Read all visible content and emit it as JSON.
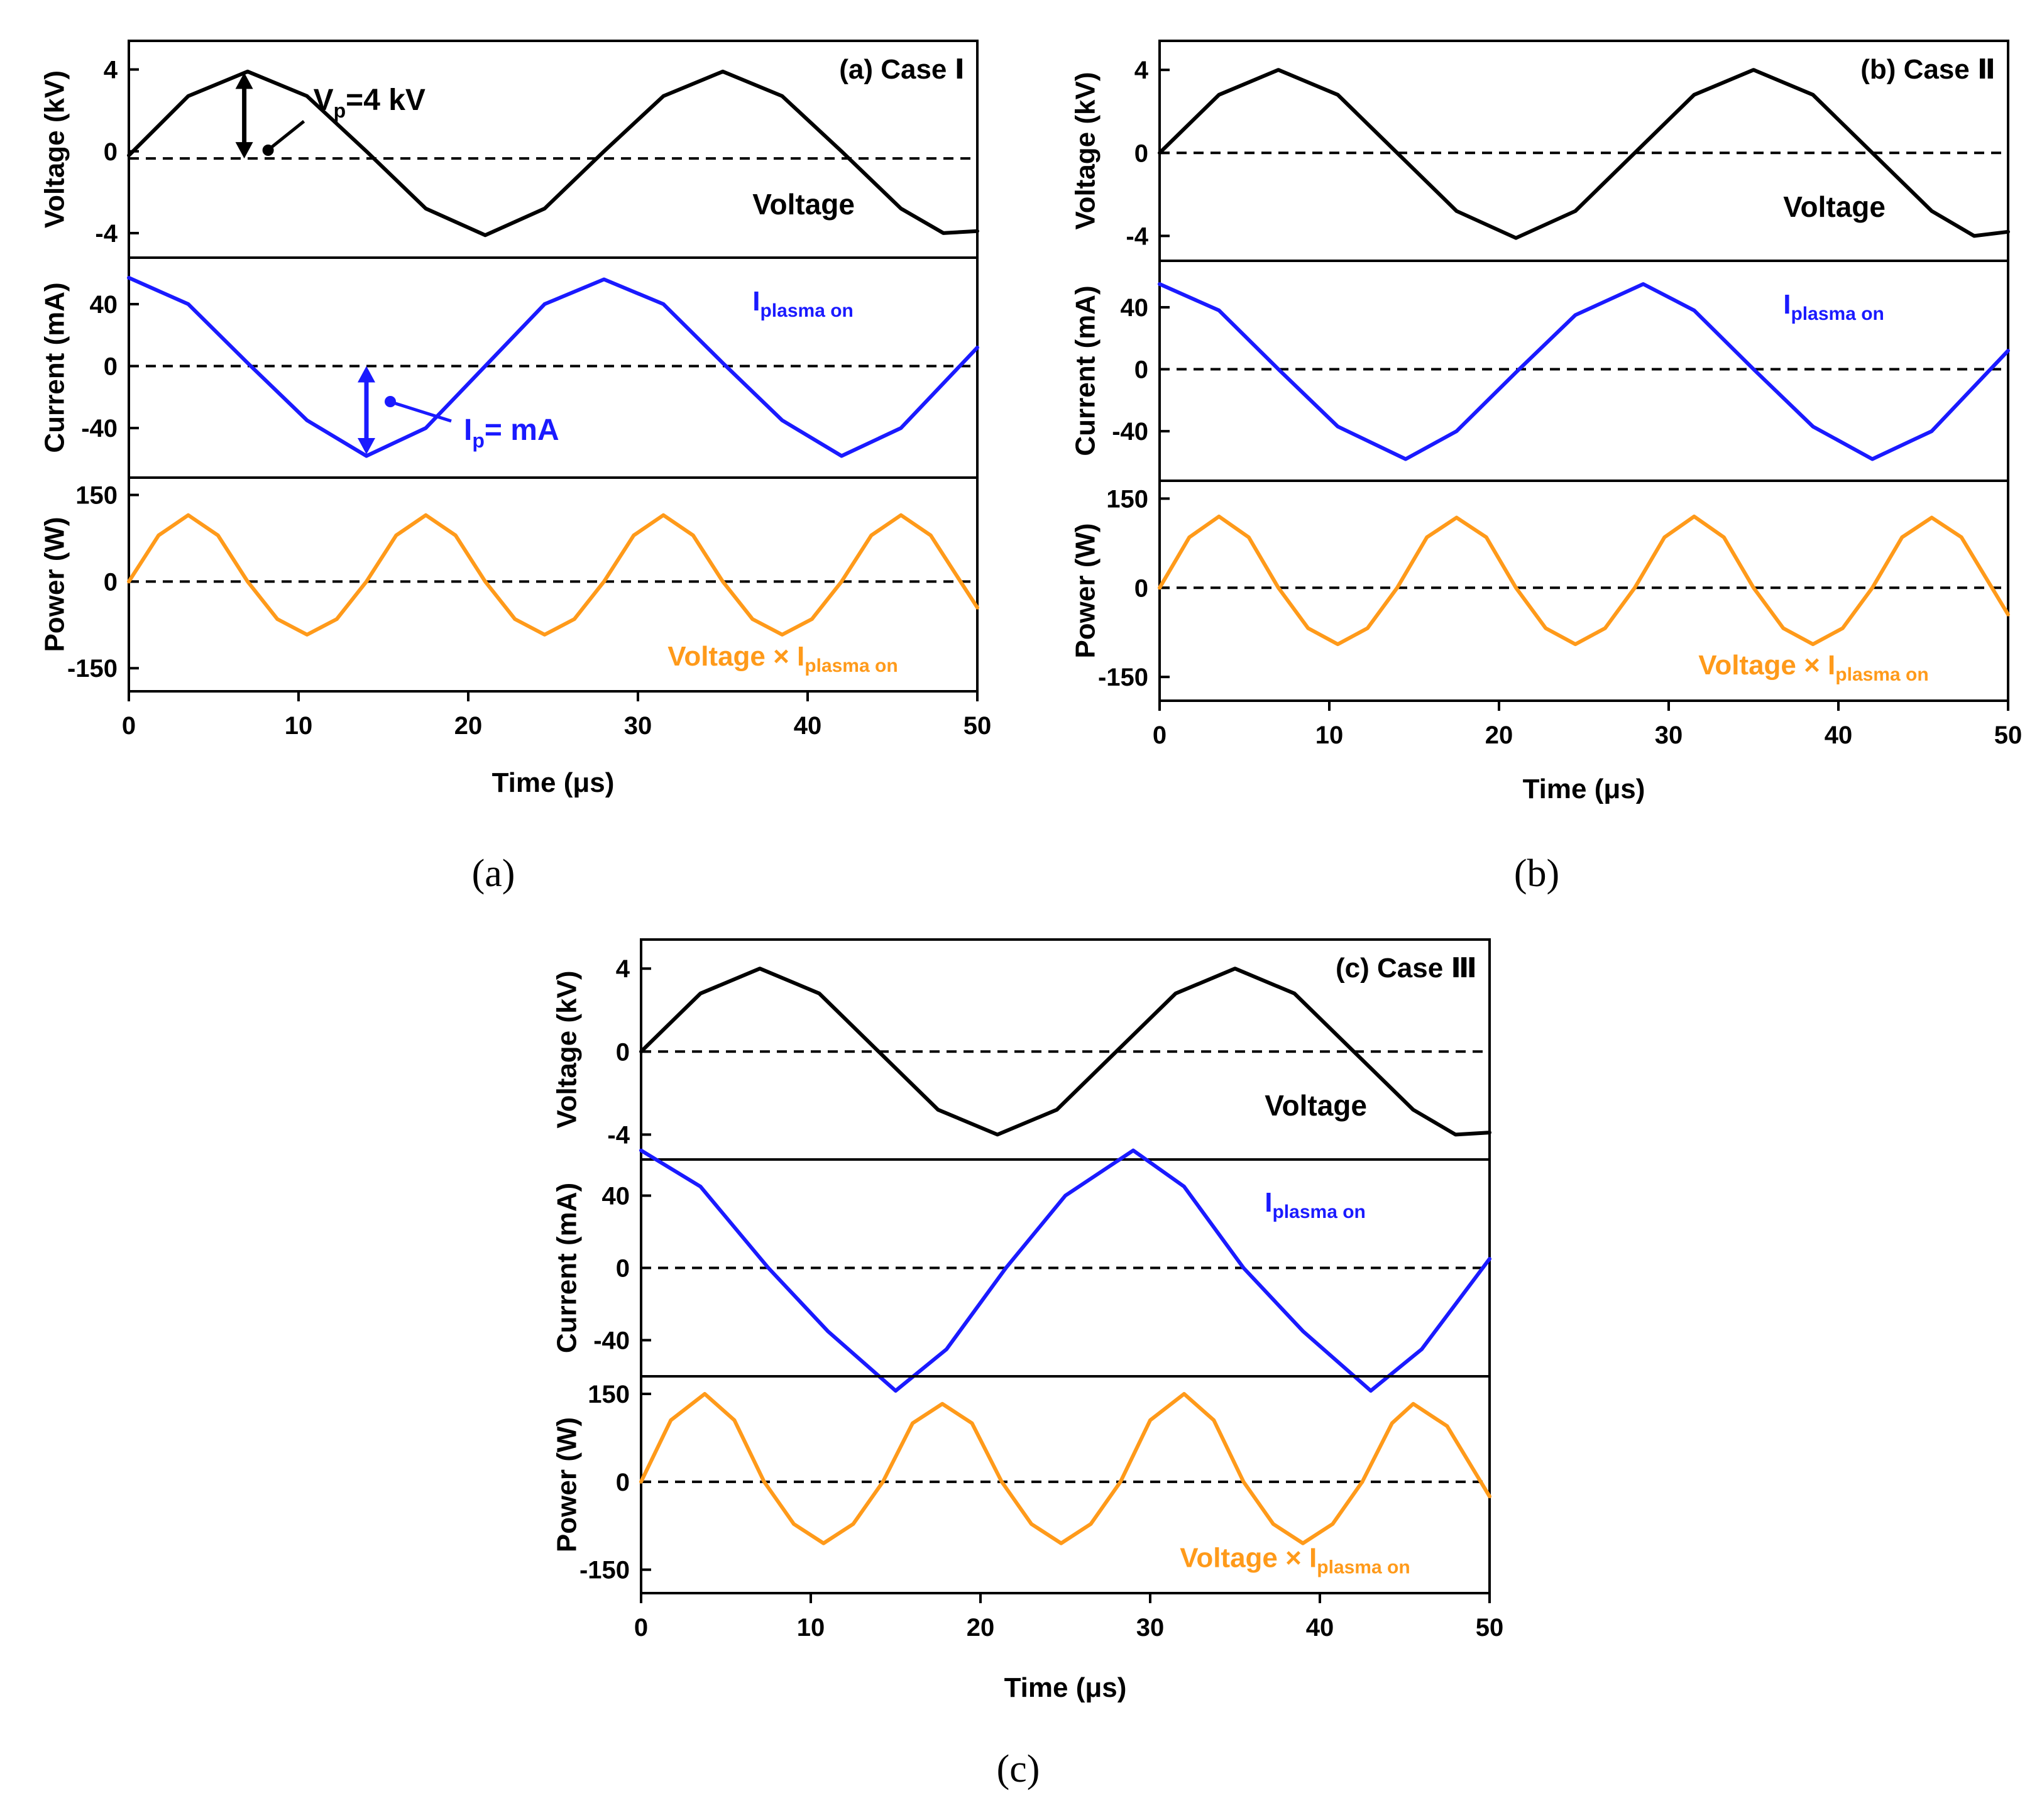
{
  "figure": {
    "captions": [
      "(a)",
      "(b)",
      "(c)"
    ]
  },
  "colors": {
    "voltage": "#000000",
    "current": "#1a1aff",
    "power": "#ff9a1a",
    "axis": "#000000",
    "zero_line": "#000000"
  },
  "chart_data": [
    {
      "type": "line",
      "panel_label": "(a) Case Ⅰ",
      "caption": "(a)",
      "xlabel": "Time (μs)",
      "xlim": [
        0,
        50
      ],
      "xticks": [
        "0",
        "10",
        "20",
        "30",
        "40",
        "50"
      ],
      "subplots": [
        {
          "name": "voltage",
          "ylabel": "Voltage (kV)",
          "ylim": [
            -5.2,
            5.4
          ],
          "yticks": [
            "4",
            "0",
            "-4"
          ],
          "ytick_values": [
            4,
            0,
            -4
          ],
          "zero_line": -0.35,
          "series_label": "Voltage",
          "series": {
            "name": "Voltage",
            "x": [
              0,
              3.5,
              7,
              10.5,
              14,
              17.5,
              21,
              24.5,
              28,
              31.5,
              35,
              38.5,
              42,
              45.5,
              48,
              50
            ],
            "y": [
              -0.2,
              2.7,
              3.9,
              2.7,
              0,
              -2.8,
              -4.1,
              -2.8,
              0,
              2.7,
              3.9,
              2.7,
              0,
              -2.8,
              -4.0,
              -3.9
            ]
          },
          "annotation": {
            "text": "V",
            "sub": "p",
            "suffix": "=4 kV",
            "arrow_x": 6.8,
            "arrow_y_from": -0.35,
            "arrow_y_to": 3.85
          }
        },
        {
          "name": "current",
          "ylabel": "Current (mA)",
          "ylim": [
            -72,
            70
          ],
          "yticks": [
            "40",
            "0",
            "-40"
          ],
          "ytick_values": [
            40,
            0,
            -40
          ],
          "zero_line": 0,
          "series_label": "I",
          "series_label_sub": "plasma on",
          "series": {
            "name": "I plasma on",
            "x": [
              0,
              3.5,
              7,
              10.5,
              14,
              17.5,
              21,
              24.5,
              28,
              31.5,
              35,
              38.5,
              42,
              45.5,
              50
            ],
            "y": [
              57,
              40,
              2,
              -35,
              -58,
              -40,
              0,
              40,
              56,
              40,
              2,
              -35,
              -58,
              -40,
              12
            ]
          },
          "annotation": {
            "text": "I",
            "sub": "p",
            "suffix": "= mA",
            "arrow_x": 14,
            "arrow_y_from": 0,
            "arrow_y_to": -57
          }
        },
        {
          "name": "power",
          "ylabel": "Power (W)",
          "ylim": [
            -190,
            180
          ],
          "yticks": [
            "150",
            "0",
            "-150"
          ],
          "ytick_values": [
            150,
            0,
            -150
          ],
          "zero_line": 0,
          "series_label": "Voltage × I",
          "series_label_sub": "plasma on",
          "series": {
            "name": "Voltage × I plasma on",
            "x": [
              0,
              1.75,
              3.5,
              5.25,
              7,
              8.75,
              10.5,
              12.25,
              14,
              15.75,
              17.5,
              19.25,
              21,
              22.75,
              24.5,
              26.25,
              28,
              29.75,
              31.5,
              33.25,
              35,
              36.75,
              38.5,
              40.25,
              42,
              43.75,
              45.5,
              47.25,
              50
            ],
            "y": [
              0,
              80,
              115,
              80,
              0,
              -65,
              -92,
              -65,
              0,
              80,
              115,
              80,
              0,
              -65,
              -92,
              -65,
              0,
              80,
              115,
              80,
              0,
              -65,
              -92,
              -65,
              0,
              80,
              115,
              80,
              -45
            ]
          }
        }
      ]
    },
    {
      "type": "line",
      "panel_label": "(b) Case Ⅱ",
      "caption": "(b)",
      "xlabel": "Time (μs)",
      "xlim": [
        0,
        50
      ],
      "xticks": [
        "0",
        "10",
        "20",
        "30",
        "40",
        "50"
      ],
      "subplots": [
        {
          "name": "voltage",
          "ylabel": "Voltage (kV)",
          "ylim": [
            -5.2,
            5.4
          ],
          "yticks": [
            "4",
            "0",
            "-4"
          ],
          "ytick_values": [
            4,
            0,
            -4
          ],
          "zero_line": 0,
          "series_label": "Voltage",
          "series": {
            "name": "Voltage",
            "x": [
              0,
              3.5,
              7,
              10.5,
              14,
              17.5,
              21,
              24.5,
              28,
              31.5,
              35,
              38.5,
              42,
              45.5,
              48,
              50
            ],
            "y": [
              0,
              2.8,
              4.0,
              2.8,
              0,
              -2.8,
              -4.1,
              -2.8,
              0,
              2.8,
              4.0,
              2.8,
              0,
              -2.8,
              -4.0,
              -3.8
            ]
          }
        },
        {
          "name": "current",
          "ylabel": "Current (mA)",
          "ylim": [
            -72,
            70
          ],
          "yticks": [
            "40",
            "0",
            "-40"
          ],
          "ytick_values": [
            40,
            0,
            -40
          ],
          "zero_line": 0,
          "series_label": "I",
          "series_label_sub": "plasma on",
          "series": {
            "name": "I plasma on",
            "x": [
              0,
              3.5,
              7,
              10.5,
              14.5,
              17.5,
              21,
              24.5,
              28.5,
              31.5,
              35,
              38.5,
              42,
              45.5,
              50
            ],
            "y": [
              55,
              38,
              0,
              -37,
              -58,
              -40,
              -2,
              35,
              55,
              38,
              0,
              -37,
              -58,
              -40,
              12
            ]
          }
        },
        {
          "name": "power",
          "ylabel": "Power (W)",
          "ylim": [
            -190,
            180
          ],
          "yticks": [
            "150",
            "0",
            "-150"
          ],
          "ytick_values": [
            150,
            0,
            -150
          ],
          "zero_line": 0,
          "series_label": "Voltage × I",
          "series_label_sub": "plasma on",
          "series": {
            "name": "Voltage × I plasma on",
            "x": [
              0,
              1.75,
              3.5,
              5.25,
              7,
              8.75,
              10.5,
              12.25,
              14,
              15.75,
              17.5,
              19.25,
              21,
              22.75,
              24.5,
              26.25,
              28,
              29.75,
              31.5,
              33.25,
              35,
              36.75,
              38.5,
              40.25,
              42,
              43.75,
              45.5,
              47.25,
              50
            ],
            "y": [
              0,
              85,
              120,
              85,
              0,
              -68,
              -95,
              -68,
              0,
              85,
              118,
              85,
              0,
              -68,
              -95,
              -68,
              0,
              85,
              120,
              85,
              0,
              -68,
              -95,
              -68,
              0,
              85,
              118,
              85,
              -45
            ]
          }
        }
      ]
    },
    {
      "type": "line",
      "panel_label": "(c) Case Ⅲ",
      "caption": "(c)",
      "xlabel": "Time (μs)",
      "xlim": [
        0,
        50
      ],
      "xticks": [
        "0",
        "10",
        "20",
        "30",
        "40",
        "50"
      ],
      "subplots": [
        {
          "name": "voltage",
          "ylabel": "Voltage (kV)",
          "ylim": [
            -5.2,
            5.4
          ],
          "yticks": [
            "4",
            "0",
            "-4"
          ],
          "ytick_values": [
            4,
            0,
            -4
          ],
          "zero_line": 0,
          "series_label": "Voltage",
          "series": {
            "name": "Voltage",
            "x": [
              0,
              3.5,
              7,
              10.5,
              14,
              17.5,
              21,
              24.5,
              28,
              31.5,
              35,
              38.5,
              42,
              45.5,
              48,
              50
            ],
            "y": [
              0,
              2.8,
              4.0,
              2.8,
              0,
              -2.8,
              -4.0,
              -2.8,
              0,
              2.8,
              4.0,
              2.8,
              0,
              -2.8,
              -4.0,
              -3.9
            ]
          }
        },
        {
          "name": "current",
          "ylabel": "Current (mA)",
          "ylim": [
            -60,
            60
          ],
          "yticks": [
            "40",
            "0",
            "-40"
          ],
          "ytick_values": [
            40,
            0,
            -40
          ],
          "zero_line": 0,
          "series_label": "I",
          "series_label_sub": "plasma on",
          "series": {
            "name": "I plasma on",
            "x": [
              0,
              3.5,
              7.5,
              11,
              15,
              18,
              21.5,
              25,
              29,
              32,
              35.5,
              39,
              43,
              46,
              50
            ],
            "y": [
              65,
              45,
              0,
              -35,
              -68,
              -45,
              0,
              40,
              65,
              45,
              0,
              -35,
              -68,
              -45,
              5
            ]
          }
        },
        {
          "name": "power",
          "ylabel": "Power (W)",
          "ylim": [
            -190,
            180
          ],
          "yticks": [
            "150",
            "0",
            "-150"
          ],
          "ytick_values": [
            150,
            0,
            -150
          ],
          "zero_line": 0,
          "series_label": "Voltage × I",
          "series_label_sub": "plasma on",
          "series": {
            "name": "Voltage × I plasma on",
            "x": [
              0,
              1.75,
              3.75,
              5.5,
              7.25,
              9,
              10.75,
              12.5,
              14.25,
              16,
              17.75,
              19.5,
              21.25,
              23,
              24.75,
              26.5,
              28.25,
              30,
              32,
              33.75,
              35.5,
              37.25,
              39,
              40.75,
              42.5,
              44.25,
              45.5,
              47.5,
              50
            ],
            "y": [
              0,
              105,
              150,
              105,
              0,
              -72,
              -105,
              -72,
              0,
              100,
              133,
              100,
              0,
              -72,
              -105,
              -72,
              0,
              105,
              150,
              105,
              0,
              -72,
              -105,
              -72,
              0,
              100,
              133,
              95,
              -25
            ]
          }
        }
      ]
    }
  ]
}
